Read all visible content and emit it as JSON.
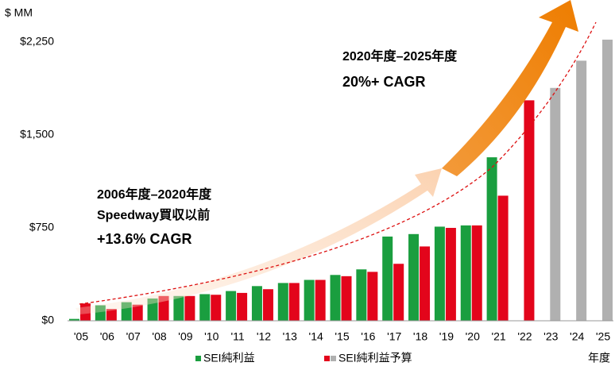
{
  "chart_data": {
    "type": "bar",
    "y_axis_title": "$ MM",
    "x_axis_title": "年度",
    "categories": [
      "'05",
      "'06",
      "'07",
      "'08",
      "'09",
      "'10",
      "'11",
      "'12",
      "'13",
      "'14",
      "'15",
      "'16",
      "'17",
      "'18",
      "'19",
      "'20",
      "'21",
      "'22",
      "'23",
      "'24",
      "'25"
    ],
    "series": [
      {
        "name": "SEI純利益",
        "color": "#1a9e3f",
        "values": [
          15,
          125,
          150,
          180,
          200,
          215,
          240,
          280,
          305,
          330,
          370,
          415,
          680,
          700,
          760,
          770,
          1320,
          null,
          null,
          null,
          null
        ]
      },
      {
        "name": "SEI純利益予算",
        "color": "#e3051b",
        "colors": [
          "#e3051b",
          "#e3051b",
          "#e3051b",
          "#e3051b",
          "#e3051b",
          "#e3051b",
          "#e3051b",
          "#e3051b",
          "#e3051b",
          "#e3051b",
          "#e3051b",
          "#e3051b",
          "#e3051b",
          "#e3051b",
          "#e3051b",
          "#e3051b",
          "#e3051b",
          "#e3051b",
          "#b0b0b0",
          "#b0b0b0",
          "#b0b0b0"
        ],
        "values": [
          140,
          95,
          130,
          200,
          200,
          210,
          225,
          255,
          305,
          330,
          360,
          395,
          460,
          600,
          750,
          770,
          1010,
          1780,
          1880,
          2100,
          2270
        ]
      }
    ],
    "ylim": [
      0,
      2590
    ],
    "yticks": [
      {
        "value": 0,
        "label": "$0"
      },
      {
        "value": 750,
        "label": "$750"
      },
      {
        "value": 1500,
        "label": "$1,500"
      },
      {
        "value": 2250,
        "label": "$2,250"
      }
    ],
    "annotations": [
      {
        "color": "#ee7d00",
        "lines": [
          "2020年度–2025年度",
          "20%+ CAGR"
        ]
      },
      {
        "color": "#f6b88a",
        "lines": [
          "2006年度–2020年度",
          "Speedway買収以前",
          "+13.6% CAGR"
        ]
      }
    ]
  }
}
